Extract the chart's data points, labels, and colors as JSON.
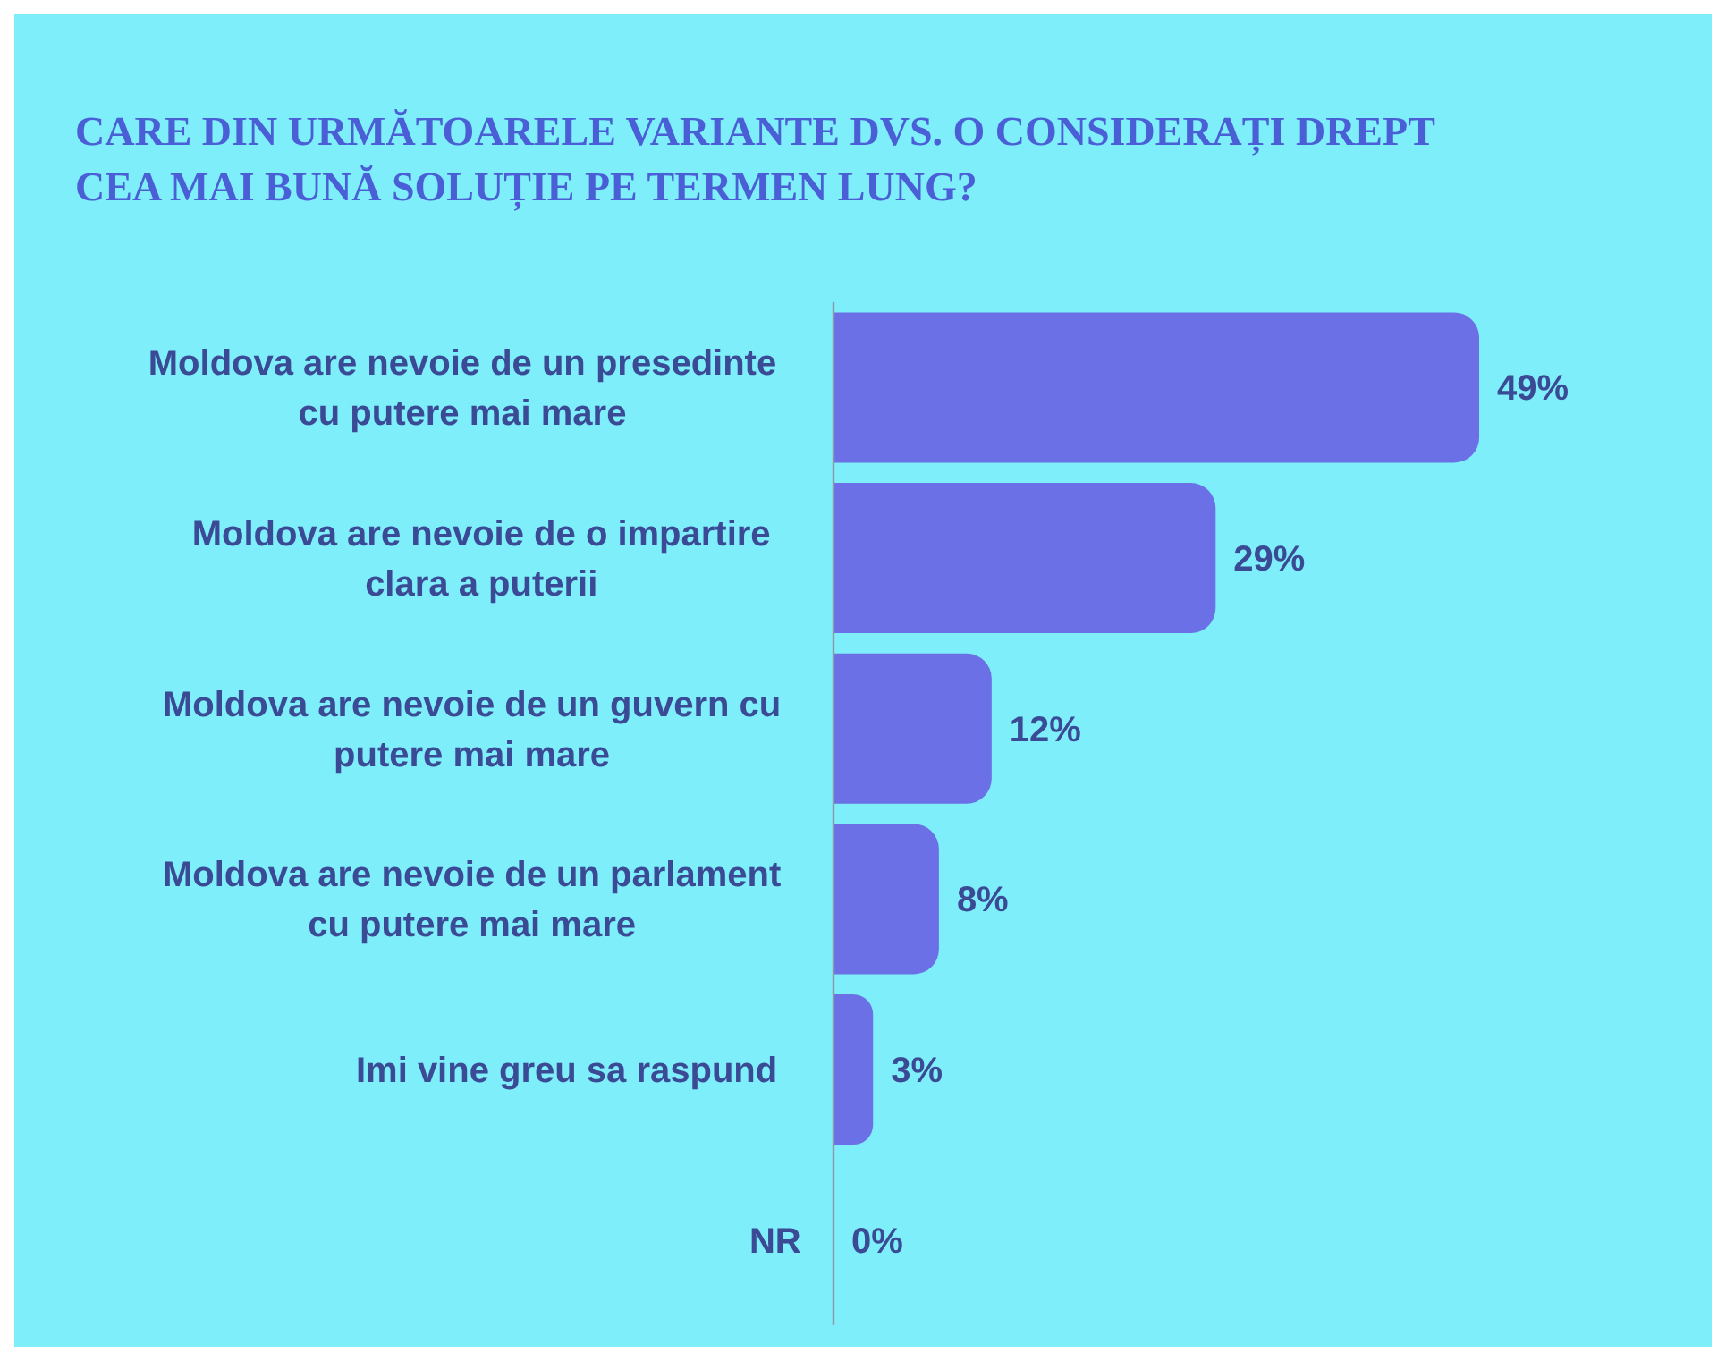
{
  "chart_data": {
    "type": "bar",
    "orientation": "horizontal",
    "title": "CARE DIN URMĂTOARELE VARIANTE DVS. O CONSIDERAȚI DREPT CEA MAI BUNĂ SOLUȚIE PE TERMEN LUNG?",
    "categories": [
      "Moldova are nevoie de un presedinte cu putere mai mare",
      "Moldova are nevoie de o impartire clara a puterii",
      "Moldova are nevoie de un guvern cu putere mai mare",
      "Moldova are nevoie de un parlament cu putere mai mare",
      "Imi vine greu sa raspund",
      "NR"
    ],
    "values": [
      49,
      29,
      12,
      8,
      3,
      0
    ],
    "value_labels": [
      "49%",
      "29%",
      "12%",
      "8%",
      "3%",
      "0%"
    ],
    "color": "#6b70e6"
  }
}
